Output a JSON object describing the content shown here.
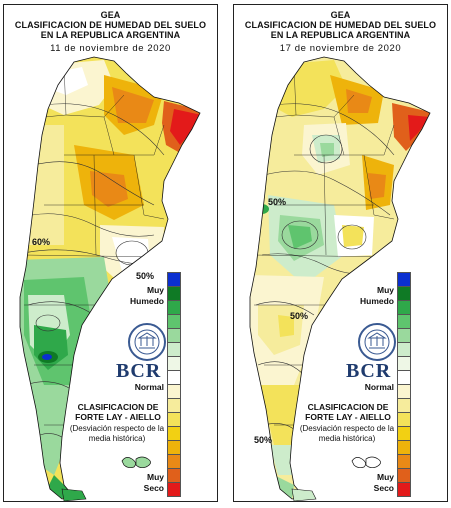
{
  "panels": [
    {
      "title_line1": "GEA",
      "title_line2": "CLASIFICACION DE HUMEDAD DEL SUELO",
      "title_line3": "EN LA REPUBLICA ARGENTINA",
      "date": "11 de noviembre de 2020",
      "contour_labels": [
        "60%",
        "50%"
      ]
    },
    {
      "title_line1": "GEA",
      "title_line2": "CLASIFICACION DE HUMEDAD DEL SUELO",
      "title_line3": "EN LA REPUBLICA ARGENTINA",
      "date": "17 de noviembre de 2020",
      "contour_labels": [
        "50%",
        "50%",
        "50%"
      ]
    }
  ],
  "legend": {
    "muy_humedo": "Muy\nHumedo",
    "normal": "Normal",
    "muy_seco": "Muy\nSeco",
    "colors": [
      "#0b2fd0",
      "#0f7a25",
      "#2fa84a",
      "#5fc46e",
      "#9ad99d",
      "#cdeccb",
      "#eef7e6",
      "#ffffff",
      "#fbf5d0",
      "#f6ec9c",
      "#f3e25a",
      "#f2d013",
      "#eeb30b",
      "#e98916",
      "#e0601b",
      "#e31a1a"
    ]
  },
  "brand": {
    "logo_text": "BCR",
    "classification_title": "CLASIFICACION DE FORTE LAY - AIELLO",
    "classification_subtitle": "(Desviación respecto de la media histórica)"
  }
}
